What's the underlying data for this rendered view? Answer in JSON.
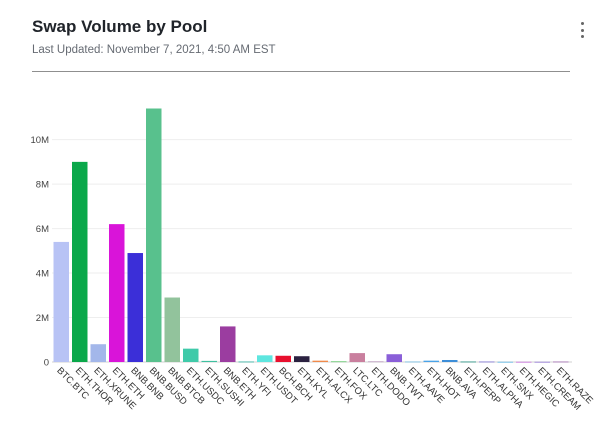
{
  "header": {
    "title": "Swap Volume by Pool",
    "subtitle": "Last Updated: November 7, 2021, 4:50 AM EST",
    "menu_icon": "vertical-dots-icon"
  },
  "chart_data": {
    "type": "bar",
    "title": "Swap Volume by Pool",
    "ylim": [
      0,
      11400000
    ],
    "yticks": [
      0,
      2000000,
      4000000,
      6000000,
      8000000,
      10000000
    ],
    "ytick_labels": [
      "0",
      "2M",
      "4M",
      "6M",
      "8M",
      "10M"
    ],
    "grid": true,
    "categories": [
      "BTC.BTC",
      "ETH.THOR",
      "ETH.XRUNE",
      "ETH.ETH",
      "BNB.BNB",
      "BNB.BUSD",
      "BNB.BTCB",
      "ETH.USDC",
      "ETH.SUSHI",
      "BNB.ETH",
      "ETH.YFI",
      "ETH.USDT",
      "BCH.BCH",
      "ETH.KYL",
      "ETH.ALCX",
      "ETH.FOX",
      "LTC.LTC",
      "ETH.DODO",
      "BNB.TWT",
      "ETH.AAVE",
      "ETH.HOT",
      "BNB.AVA",
      "ETH.PERP",
      "ETH.ALPHA",
      "ETH.SNX",
      "ETH.HEGIC",
      "ETH.CREAM",
      "ETH.RAZE"
    ],
    "values": [
      5400000,
      9000000,
      800000,
      6200000,
      4900000,
      11400000,
      2900000,
      600000,
      50000,
      1600000,
      20000,
      300000,
      280000,
      260000,
      60000,
      30000,
      400000,
      30000,
      350000,
      20000,
      60000,
      90000,
      20000,
      20000,
      10000,
      10000,
      10000,
      20000
    ],
    "colors": [
      "#b8c3f5",
      "#0aa84a",
      "#a3b7ea",
      "#d914d9",
      "#3b2fd8",
      "#58c18d",
      "#92c39c",
      "#3fcaa9",
      "#3fc0a0",
      "#9b3da0",
      "#2eb0a0",
      "#5ee6df",
      "#e8102e",
      "#2b2140",
      "#f08a4b",
      "#62c46a",
      "#c97f9e",
      "#bb9cbf",
      "#8a5fd8",
      "#6fb9e0",
      "#4aa3e8",
      "#3d8ed8",
      "#1f8f7f",
      "#7a6fd0",
      "#55b0e0",
      "#c26ad6",
      "#8c6fd0",
      "#a06ab0"
    ]
  }
}
